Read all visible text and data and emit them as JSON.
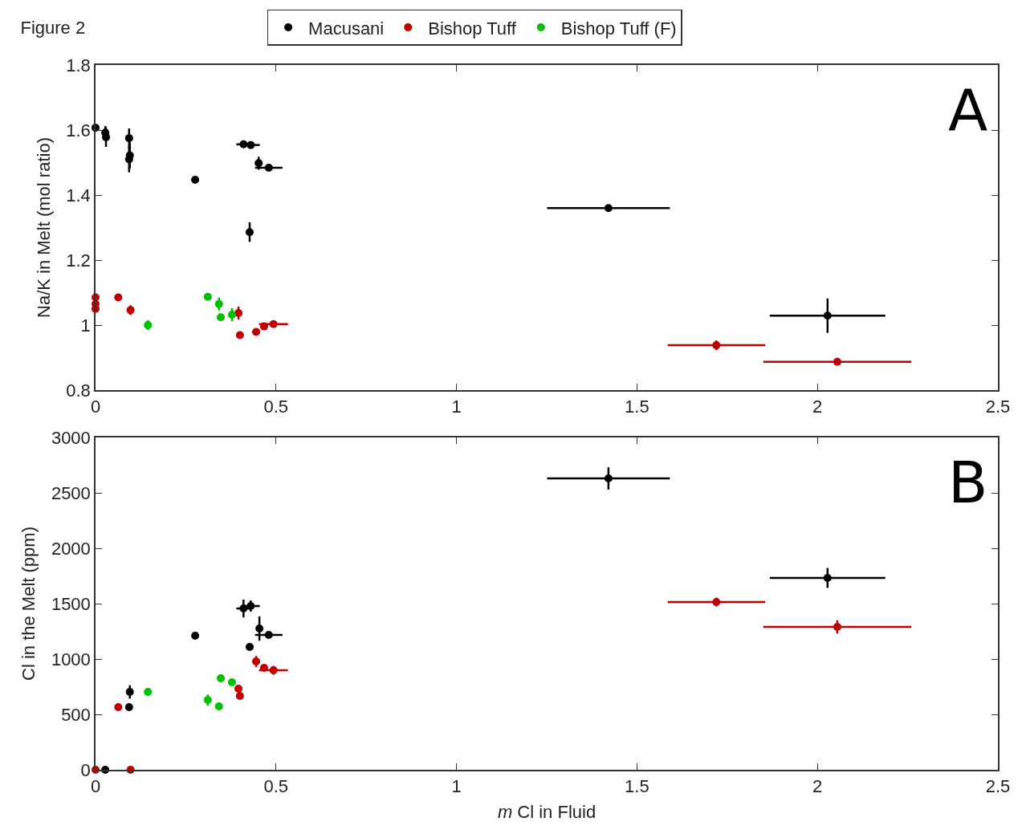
{
  "chart_data": [
    {
      "type": "scatter",
      "title": "Figure 2",
      "ylabel": "Na/K in Melt (mol ratio)",
      "annotations": [
        "A"
      ],
      "xlim": [
        0,
        2.5
      ],
      "xticks": [
        0,
        0.5,
        1,
        1.5,
        2,
        2.5
      ],
      "ylim": [
        0.8,
        1.8
      ],
      "yticks": [
        0.8,
        1,
        1.2,
        1.4,
        1.6,
        1.8
      ],
      "grid": false,
      "legend": "top",
      "marker": "circle",
      "series": [
        {
          "name": "Macusani",
          "color": "#000000",
          "x": [
            0,
            0.027,
            0.029,
            0.093,
            0.095,
            0.093,
            0.276,
            0.41,
            0.43,
            0.452,
            0.48,
            0.427,
            1.421,
            2.028
          ],
          "values": [
            1.607,
            1.592,
            1.578,
            1.575,
            1.522,
            1.51,
            1.447,
            1.556,
            1.554,
            1.498,
            1.484,
            1.286,
            1.36,
            1.029
          ],
          "errors": [
            null,
            0.02,
            0.03,
            0.03,
            0.04,
            0.04,
            0.01,
            null,
            0.01,
            0.02,
            null,
            0.03,
            null,
            0.053
          ],
          "xerrors": [
            null,
            null,
            null,
            null,
            null,
            null,
            0.01,
            0.02,
            0.025,
            0.01,
            0.038,
            null,
            0.17,
            0.16
          ]
        },
        {
          "name": "Bishop Tuff",
          "color": "#c00000",
          "x": [
            0,
            0,
            0,
            0.063,
            0.097,
            0.396,
            0.4,
            0.445,
            0.467,
            0.493,
            1.72,
            2.055
          ],
          "values": [
            1.085,
            1.065,
            1.05,
            1.085,
            1.046,
            1.037,
            0.969,
            0.979,
            0.996,
            1.003,
            0.938,
            0.887
          ],
          "errors": [
            null,
            null,
            null,
            0.01,
            0.015,
            0.02,
            null,
            null,
            null,
            null,
            0.015,
            null
          ],
          "xerrors": [
            null,
            null,
            null,
            null,
            null,
            null,
            null,
            0.01,
            0.01,
            0.04,
            0.135,
            0.205
          ]
        },
        {
          "name": "Bishop Tuff (F)",
          "color": "#00c000",
          "x": [
            0.145,
            0.311,
            0.342,
            0.347,
            0.378
          ],
          "values": [
            1.0,
            1.087,
            1.065,
            1.024,
            1.032
          ],
          "errors": [
            0.015,
            null,
            0.02,
            null,
            0.02
          ],
          "xerrors": [
            null,
            null,
            null,
            null,
            0.01
          ]
        }
      ]
    },
    {
      "type": "scatter",
      "xlabel": "m Cl in Fluid",
      "ylabel": "Cl in the Melt (ppm)",
      "annotations": [
        "B"
      ],
      "xlim": [
        0,
        2.5
      ],
      "xticks": [
        0,
        0.5,
        1,
        1.5,
        2,
        2.5
      ],
      "ylim": [
        0,
        3000
      ],
      "yticks": [
        0,
        500,
        1000,
        1500,
        2000,
        2500,
        3000
      ],
      "grid": false,
      "legend": false,
      "marker": "circle",
      "series": [
        {
          "color": "#000000",
          "x": [
            0.027,
            0.093,
            0.095,
            0.276,
            0.41,
            0.43,
            0.454,
            0.48,
            0.427,
            1.421,
            2.028
          ],
          "values": [
            0,
            565,
            703,
            1210,
            1456,
            1478,
            1275,
            1217,
            1109,
            2630,
            1732
          ],
          "errors": [
            null,
            null,
            60,
            30,
            80,
            50,
            110,
            null,
            30,
            100,
            90
          ],
          "xerrors": [
            null,
            null,
            null,
            null,
            0.02,
            0.025,
            0.01,
            0.038,
            0.01,
            0.17,
            0.16
          ]
        },
        {
          "color": "#c00000",
          "x": [
            0,
            0.097,
            0.063,
            0.445,
            0.467,
            0.493,
            0.396,
            0.4,
            1.72,
            2.055
          ],
          "values": [
            0,
            0,
            565,
            978,
            920,
            898,
            732,
            667,
            1514,
            1290
          ],
          "errors": [
            null,
            null,
            null,
            50,
            null,
            40,
            30,
            null,
            40,
            60
          ],
          "xerrors": [
            null,
            null,
            null,
            0.01,
            0.01,
            0.04,
            null,
            null,
            0.135,
            0.205
          ]
        },
        {
          "color": "#00c000",
          "x": [
            0.145,
            0.311,
            0.342,
            0.347,
            0.378
          ],
          "values": [
            703,
            630,
            572,
            826,
            790
          ],
          "errors": [
            null,
            50,
            null,
            null,
            null
          ],
          "xerrors": [
            null,
            null,
            null,
            null,
            0.01
          ]
        }
      ]
    }
  ]
}
